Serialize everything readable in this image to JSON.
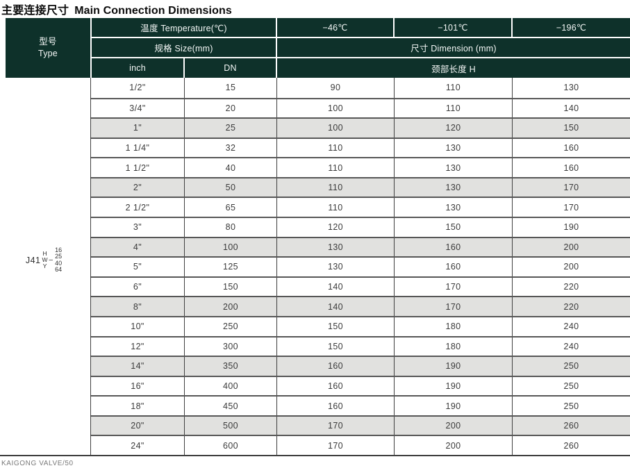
{
  "page": {
    "title_zh": "主要连接尺寸",
    "title_en": "Main Connection Dimensions",
    "footer": "KAIGONG VALVE/50"
  },
  "colors": {
    "header_bg": "#0e312a",
    "stripe_bg": "#e1e1df",
    "border_dark": "#3f3f3f",
    "row_border": "#565656",
    "body_text": "#3a3a3a"
  },
  "table": {
    "header": {
      "type_zh": "型号",
      "type_en": "Type",
      "temperature": "温度 Temperature(℃)",
      "size": "规格 Size(mm)",
      "dimension": "尺寸 Dimension (mm)",
      "inch": "inch",
      "dn": "DN",
      "neck": "颈部长度 H",
      "t46": "−46℃",
      "t101": "−101℃",
      "t196": "−196℃"
    },
    "model": {
      "prefix": "J41",
      "variants": [
        "H",
        "W",
        "Y"
      ],
      "dash": "–",
      "pressures": [
        "16",
        "25",
        "40",
        "64"
      ]
    },
    "rows": [
      {
        "inch": "1/2\"",
        "dn": "15",
        "h_46": "90",
        "h_101": "110",
        "h_196": "130",
        "shaded": false
      },
      {
        "inch": "3/4\"",
        "dn": "20",
        "h_46": "100",
        "h_101": "110",
        "h_196": "140",
        "shaded": false
      },
      {
        "inch": "1\"",
        "dn": "25",
        "h_46": "100",
        "h_101": "120",
        "h_196": "150",
        "shaded": true
      },
      {
        "inch": "1 1/4\"",
        "dn": "32",
        "h_46": "110",
        "h_101": "130",
        "h_196": "160",
        "shaded": false
      },
      {
        "inch": "1 1/2\"",
        "dn": "40",
        "h_46": "110",
        "h_101": "130",
        "h_196": "160",
        "shaded": false
      },
      {
        "inch": "2\"",
        "dn": "50",
        "h_46": "110",
        "h_101": "130",
        "h_196": "170",
        "shaded": true
      },
      {
        "inch": "2 1/2\"",
        "dn": "65",
        "h_46": "110",
        "h_101": "130",
        "h_196": "170",
        "shaded": false
      },
      {
        "inch": "3\"",
        "dn": "80",
        "h_46": "120",
        "h_101": "150",
        "h_196": "190",
        "shaded": false
      },
      {
        "inch": "4\"",
        "dn": "100",
        "h_46": "130",
        "h_101": "160",
        "h_196": "200",
        "shaded": true
      },
      {
        "inch": "5\"",
        "dn": "125",
        "h_46": "130",
        "h_101": "160",
        "h_196": "200",
        "shaded": false
      },
      {
        "inch": "6\"",
        "dn": "150",
        "h_46": "140",
        "h_101": "170",
        "h_196": "220",
        "shaded": false
      },
      {
        "inch": "8\"",
        "dn": "200",
        "h_46": "140",
        "h_101": "170",
        "h_196": "220",
        "shaded": true
      },
      {
        "inch": "10\"",
        "dn": "250",
        "h_46": "150",
        "h_101": "180",
        "h_196": "240",
        "shaded": false
      },
      {
        "inch": "12\"",
        "dn": "300",
        "h_46": "150",
        "h_101": "180",
        "h_196": "240",
        "shaded": false
      },
      {
        "inch": "14\"",
        "dn": "350",
        "h_46": "160",
        "h_101": "190",
        "h_196": "250",
        "shaded": true
      },
      {
        "inch": "16\"",
        "dn": "400",
        "h_46": "160",
        "h_101": "190",
        "h_196": "250",
        "shaded": false
      },
      {
        "inch": "18\"",
        "dn": "450",
        "h_46": "160",
        "h_101": "190",
        "h_196": "250",
        "shaded": false
      },
      {
        "inch": "20\"",
        "dn": "500",
        "h_46": "170",
        "h_101": "200",
        "h_196": "260",
        "shaded": true
      },
      {
        "inch": "24\"",
        "dn": "600",
        "h_46": "170",
        "h_101": "200",
        "h_196": "260",
        "shaded": false
      }
    ]
  }
}
